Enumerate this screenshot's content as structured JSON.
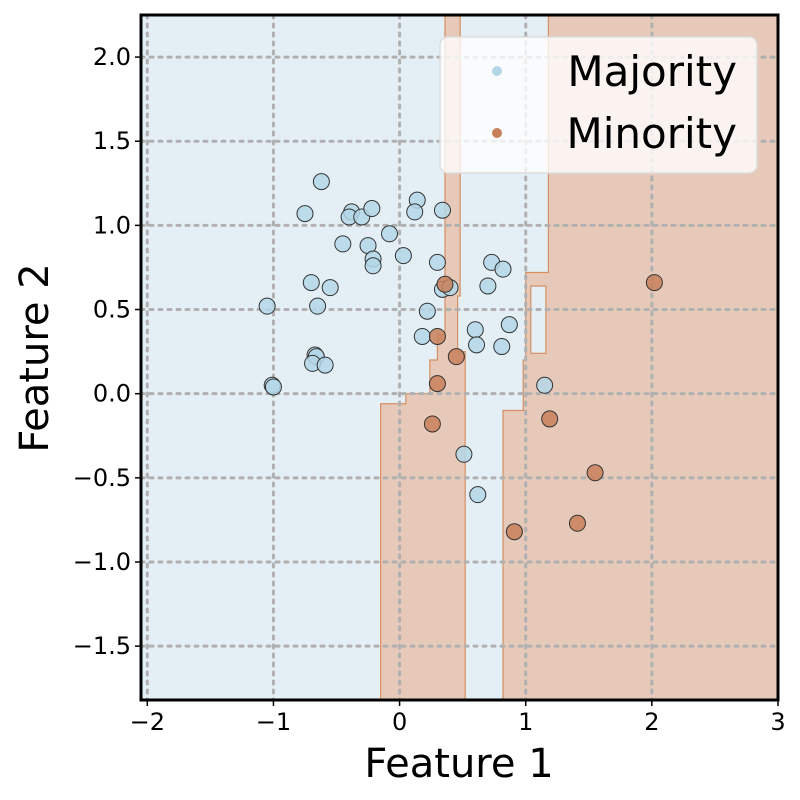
{
  "chart_data": {
    "type": "scatter",
    "xlabel": "Feature 1",
    "ylabel": "Feature 2",
    "xlim": [
      -2.05,
      3.0
    ],
    "ylim": [
      -1.82,
      2.25
    ],
    "x_ticks": [
      {
        "value": -2,
        "label": "−2"
      },
      {
        "value": -1,
        "label": "−1"
      },
      {
        "value": 0,
        "label": "0"
      },
      {
        "value": 1,
        "label": "1"
      },
      {
        "value": 2,
        "label": "2"
      },
      {
        "value": 3,
        "label": "3"
      }
    ],
    "y_ticks": [
      {
        "value": 2.0,
        "label": "2.0"
      },
      {
        "value": 1.5,
        "label": "1.5"
      },
      {
        "value": 1.0,
        "label": "1.0"
      },
      {
        "value": 0.5,
        "label": "0.5"
      },
      {
        "value": 0.0,
        "label": "0.0"
      },
      {
        "value": -0.5,
        "label": "−0.5"
      },
      {
        "value": -1.0,
        "label": "−1.0"
      },
      {
        "value": -1.5,
        "label": "−1.5"
      }
    ],
    "grid": true,
    "legend_position": "top-right",
    "colors": {
      "majority_region": "#e3eef5",
      "minority_region": "#e6c9b9",
      "boundary": "#d68f61",
      "majority_point": "#b4d7e8",
      "minority_point": "#c8805a"
    },
    "minority_region_polygons": [
      [
        [
          0.36,
          2.25
        ],
        [
          0.48,
          2.25
        ],
        [
          0.48,
          0.58
        ],
        [
          0.46,
          0.58
        ],
        [
          0.46,
          0.25
        ],
        [
          0.52,
          0.25
        ],
        [
          0.52,
          -1.82
        ],
        [
          -0.15,
          -1.82
        ],
        [
          -0.15,
          -0.06
        ],
        [
          0.05,
          -0.06
        ],
        [
          0.05,
          0.0
        ],
        [
          0.24,
          0.0
        ],
        [
          0.24,
          0.2
        ],
        [
          0.3,
          0.2
        ],
        [
          0.3,
          0.35
        ],
        [
          0.36,
          0.35
        ]
      ],
      [
        [
          1.18,
          2.25
        ],
        [
          3.0,
          2.25
        ],
        [
          3.0,
          -1.82
        ],
        [
          0.82,
          -1.82
        ],
        [
          0.82,
          -0.1
        ],
        [
          0.98,
          -0.1
        ],
        [
          0.98,
          0.2
        ],
        [
          1.0,
          0.2
        ],
        [
          1.0,
          0.72
        ],
        [
          1.18,
          0.72
        ]
      ]
    ],
    "majority_region_holes": [
      [
        [
          1.04,
          0.64
        ],
        [
          1.16,
          0.64
        ],
        [
          1.16,
          0.24
        ],
        [
          1.04,
          0.24
        ]
      ]
    ],
    "series": [
      {
        "name": "Majority",
        "points": [
          [
            -0.62,
            1.26
          ],
          [
            -0.75,
            1.07
          ],
          [
            -0.38,
            1.08
          ],
          [
            -0.4,
            1.05
          ],
          [
            -0.3,
            1.05
          ],
          [
            -0.22,
            1.1
          ],
          [
            -0.45,
            0.89
          ],
          [
            -0.25,
            0.88
          ],
          [
            -0.08,
            0.95
          ],
          [
            -0.21,
            0.8
          ],
          [
            -0.21,
            0.76
          ],
          [
            0.14,
            1.15
          ],
          [
            0.12,
            1.08
          ],
          [
            0.34,
            1.09
          ],
          [
            0.03,
            0.82
          ],
          [
            0.3,
            0.78
          ],
          [
            -0.7,
            0.66
          ],
          [
            -0.55,
            0.63
          ],
          [
            -0.65,
            0.52
          ],
          [
            -1.05,
            0.52
          ],
          [
            0.34,
            0.62
          ],
          [
            0.4,
            0.63
          ],
          [
            0.73,
            0.78
          ],
          [
            0.82,
            0.74
          ],
          [
            0.7,
            0.64
          ],
          [
            0.22,
            0.49
          ],
          [
            0.18,
            0.34
          ],
          [
            0.6,
            0.38
          ],
          [
            0.87,
            0.41
          ],
          [
            0.61,
            0.29
          ],
          [
            0.81,
            0.28
          ],
          [
            -0.67,
            0.23
          ],
          [
            -0.66,
            0.22
          ],
          [
            -0.69,
            0.18
          ],
          [
            -0.59,
            0.17
          ],
          [
            -1.01,
            0.05
          ],
          [
            -1.0,
            0.04
          ],
          [
            1.15,
            0.05
          ],
          [
            0.51,
            -0.36
          ],
          [
            0.62,
            -0.6
          ]
        ]
      },
      {
        "name": "Minority",
        "points": [
          [
            0.36,
            0.65
          ],
          [
            0.3,
            0.34
          ],
          [
            0.45,
            0.22
          ],
          [
            0.3,
            0.06
          ],
          [
            0.26,
            -0.18
          ],
          [
            1.19,
            -0.15
          ],
          [
            2.02,
            0.66
          ],
          [
            1.55,
            -0.47
          ],
          [
            1.41,
            -0.77
          ],
          [
            0.91,
            -0.82
          ]
        ]
      }
    ]
  }
}
